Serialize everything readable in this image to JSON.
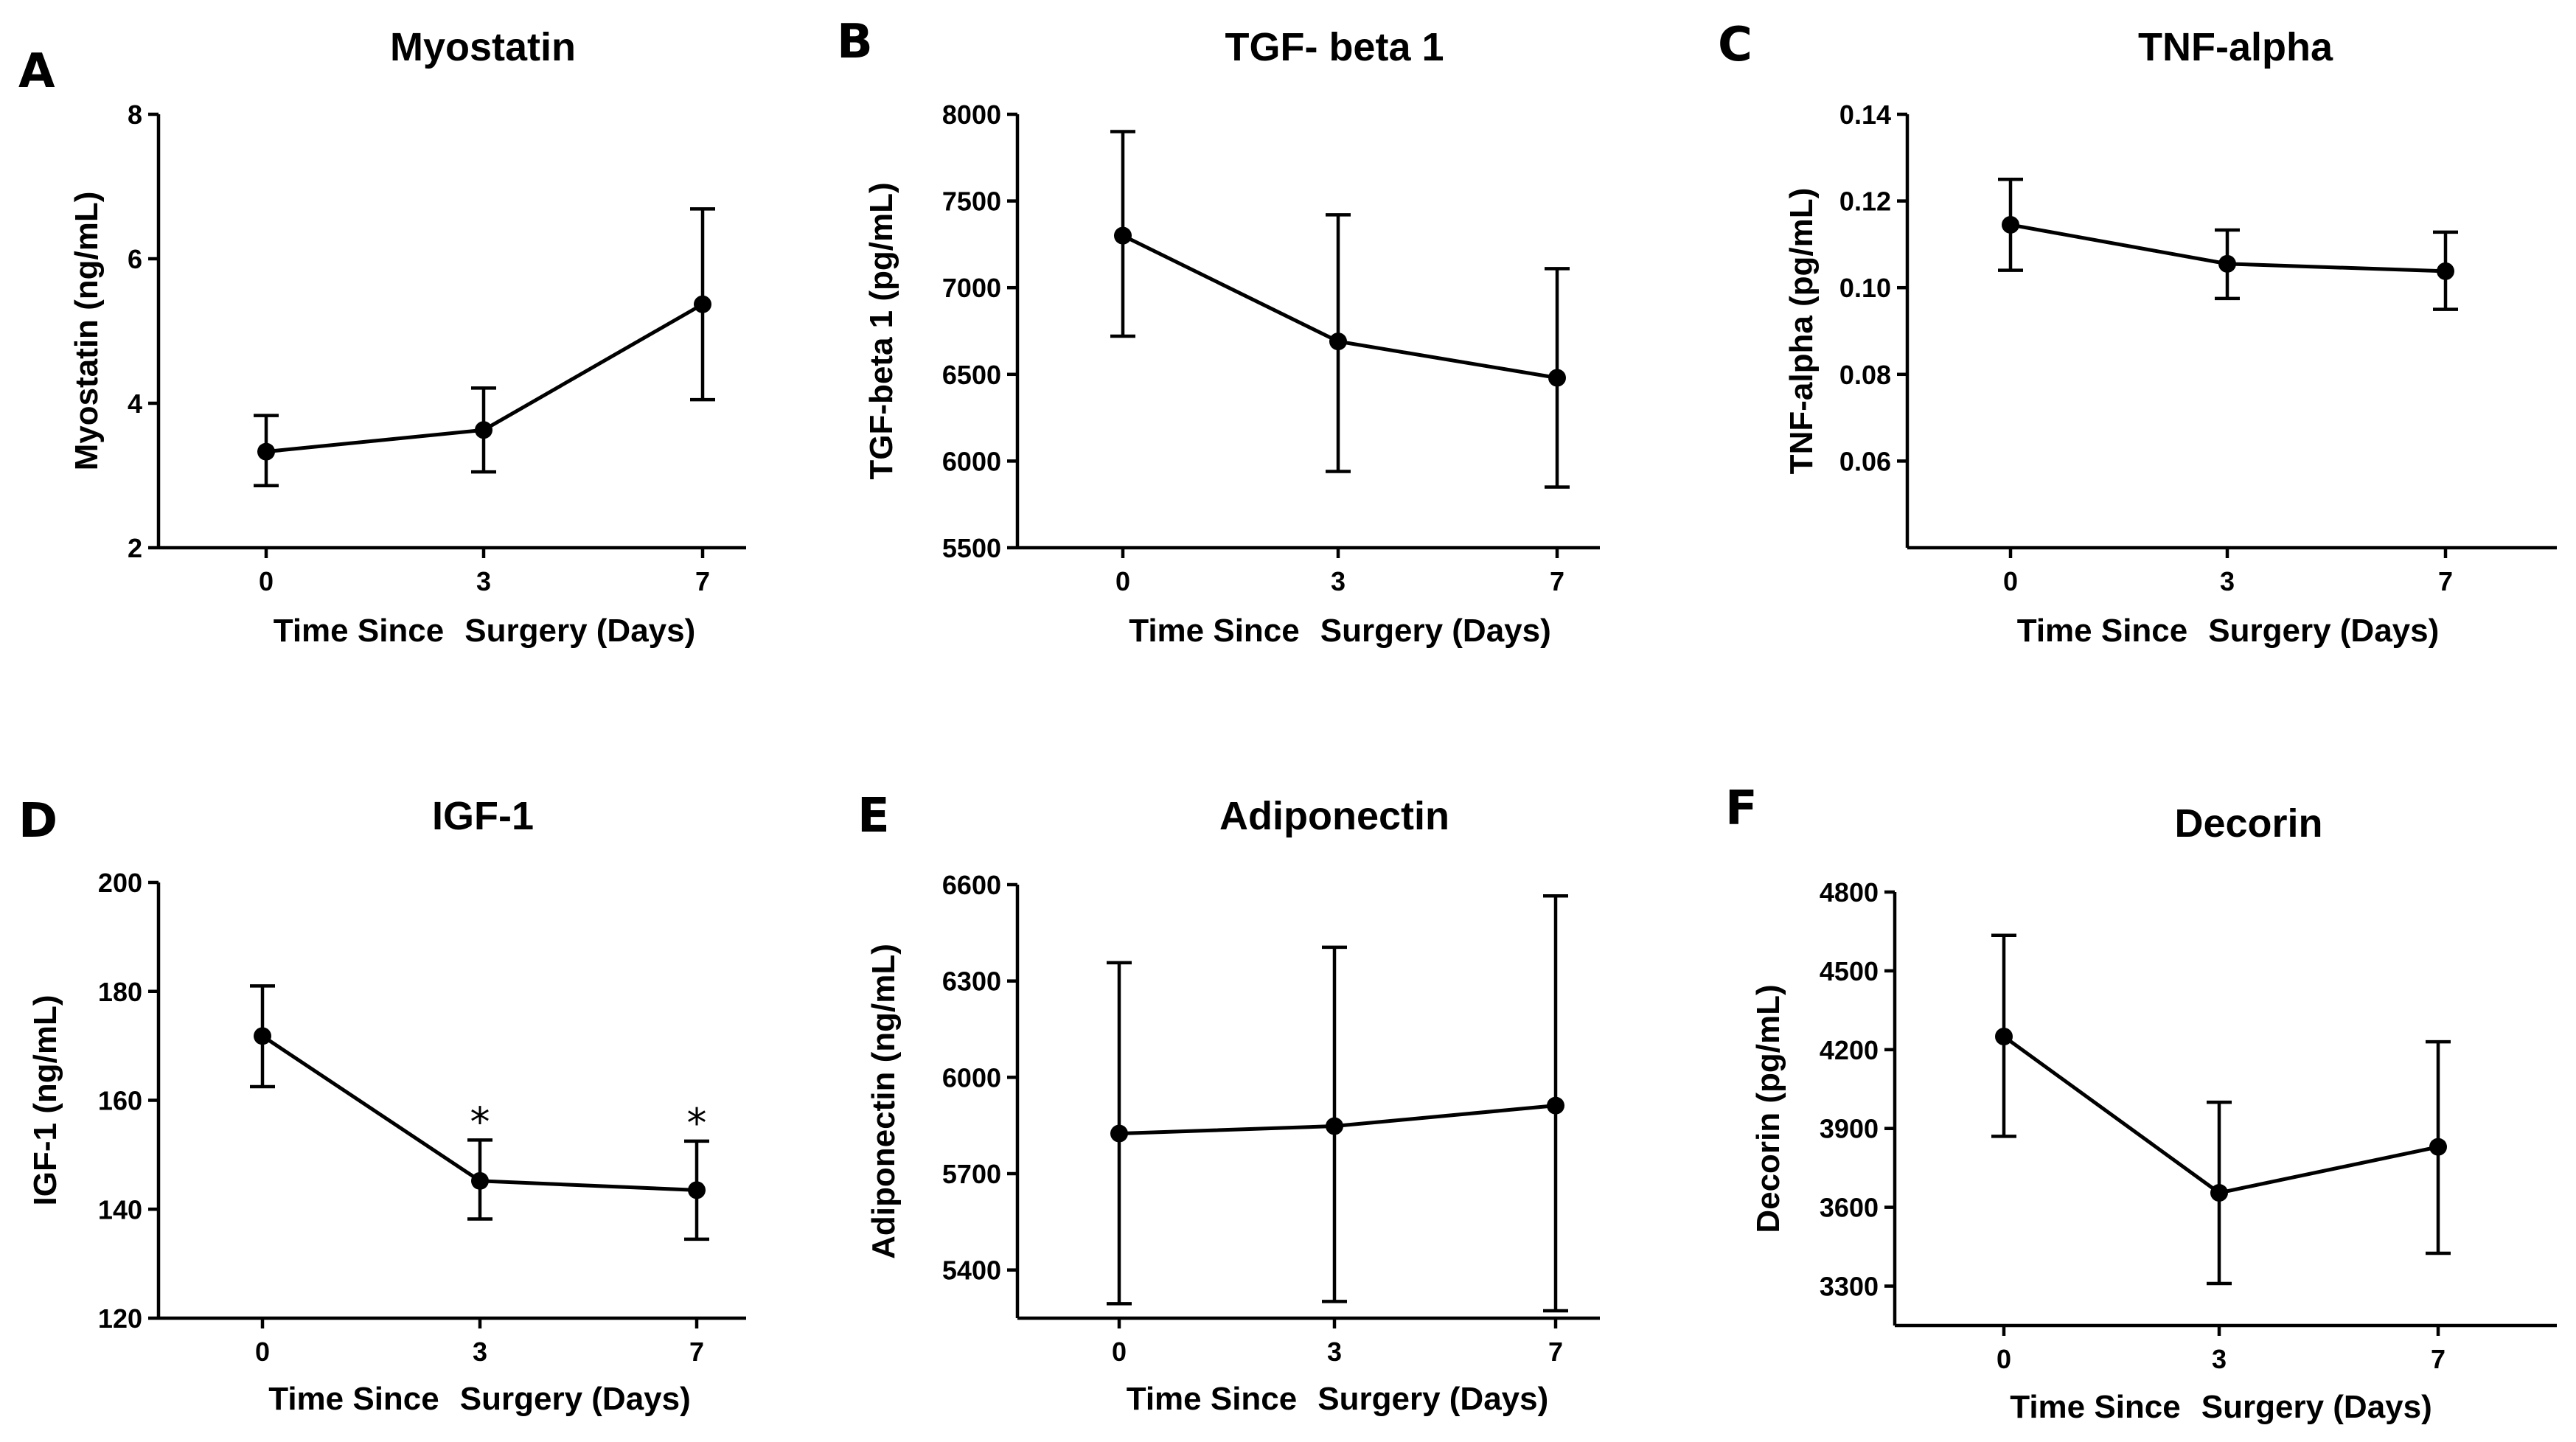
{
  "chart_data": [
    {
      "id": "A",
      "panel_label": "A",
      "type": "line",
      "title": "Myostatin",
      "ylabel": "Myostatin (ng/mL)",
      "xlabel": [
        "Time Since",
        "Surgery (Days)"
      ],
      "x": [
        "0",
        "3",
        "7"
      ],
      "y": [
        3.33,
        3.63,
        5.37
      ],
      "err_upper": [
        3.83,
        4.21,
        6.69
      ],
      "err_lower": [
        2.86,
        3.05,
        4.05
      ],
      "ylim": [
        2,
        8
      ],
      "yticks": [
        2,
        4,
        6,
        8
      ],
      "ytick_labels": [
        "2",
        "4",
        "6",
        "8"
      ],
      "annotations": [
        "",
        "",
        ""
      ]
    },
    {
      "id": "B",
      "panel_label": "B",
      "type": "line",
      "title": "TGF- beta 1",
      "ylabel": "TGF-beta 1 (pg/mL)",
      "xlabel": [
        "Time Since",
        "Surgery (Days)"
      ],
      "x": [
        "0",
        "3",
        "7"
      ],
      "y": [
        7300,
        6690,
        6480
      ],
      "err_upper": [
        7900,
        7420,
        7110
      ],
      "err_lower": [
        6720,
        5940,
        5850
      ],
      "ylim": [
        5500,
        8000
      ],
      "yticks": [
        5500,
        6000,
        6500,
        7000,
        7500,
        8000
      ],
      "ytick_labels": [
        "5500",
        "6000",
        "6500",
        "7000",
        "7500",
        "8000"
      ],
      "annotations": [
        "",
        "",
        ""
      ]
    },
    {
      "id": "C",
      "panel_label": "C",
      "type": "line",
      "title": "TNF-alpha",
      "ylabel": "TNF-alpha (pg/mL)",
      "xlabel": [
        "Time Since",
        "Surgery (Days)"
      ],
      "x": [
        "0",
        "3",
        "7"
      ],
      "y": [
        0.1145,
        0.1055,
        0.1038
      ],
      "err_upper": [
        0.125,
        0.1133,
        0.1128
      ],
      "err_lower": [
        0.104,
        0.0975,
        0.095
      ],
      "ylim": [
        0.04,
        0.14
      ],
      "yticks": [
        0.06,
        0.08,
        0.1,
        0.12,
        0.14
      ],
      "ytick_labels": [
        "0.06",
        "0.08",
        "0.10",
        "0.12",
        "0.14"
      ],
      "annotations": [
        "",
        "",
        ""
      ]
    },
    {
      "id": "D",
      "panel_label": "D",
      "type": "line",
      "title": "IGF-1",
      "ylabel": "IGF-1 (ng/mL)",
      "xlabel": [
        "Time Since",
        "Surgery (Days)"
      ],
      "x": [
        "0",
        "3",
        "7"
      ],
      "y": [
        171.8,
        145.2,
        143.5
      ],
      "err_upper": [
        181,
        152.7,
        152.5
      ],
      "err_lower": [
        162.5,
        138.2,
        134.5
      ],
      "ylim": [
        120,
        200
      ],
      "yticks": [
        120,
        140,
        160,
        180,
        200
      ],
      "ytick_labels": [
        "120",
        "140",
        "160",
        "180",
        "200"
      ],
      "annotations": [
        "",
        "*",
        "*"
      ]
    },
    {
      "id": "E",
      "panel_label": "E",
      "type": "line",
      "title": "Adiponectin",
      "ylabel": "Adiponectin (ng/mL)",
      "xlabel": [
        "Time Since",
        "Surgery (Days)"
      ],
      "x": [
        "0",
        "3",
        "7"
      ],
      "y": [
        5825,
        5848,
        5912
      ],
      "err_upper": [
        6357,
        6405,
        6565
      ],
      "err_lower": [
        5295,
        5302,
        5273
      ],
      "ylim": [
        5250,
        6600
      ],
      "yticks": [
        5400,
        5700,
        6000,
        6300,
        6600
      ],
      "ytick_labels": [
        "5400",
        "5700",
        "6000",
        "6300",
        "6600"
      ],
      "annotations": [
        "",
        "",
        ""
      ]
    },
    {
      "id": "F",
      "panel_label": "F",
      "type": "line",
      "title": "Decorin",
      "ylabel": "Decorin (pg/mL)",
      "xlabel": [
        "Time Since",
        "Surgery (Days)"
      ],
      "x": [
        "0",
        "3",
        "7"
      ],
      "y": [
        4250,
        3655,
        3830
      ],
      "err_upper": [
        4635,
        4000,
        4230
      ],
      "err_lower": [
        3870,
        3310,
        3425
      ],
      "ylim": [
        3150,
        4800
      ],
      "yticks": [
        3300,
        3600,
        3900,
        4200,
        4500,
        4800
      ],
      "ytick_labels": [
        "3300",
        "3600",
        "3900",
        "4200",
        "4500",
        "4800"
      ],
      "annotations": [
        "",
        "",
        ""
      ]
    }
  ]
}
